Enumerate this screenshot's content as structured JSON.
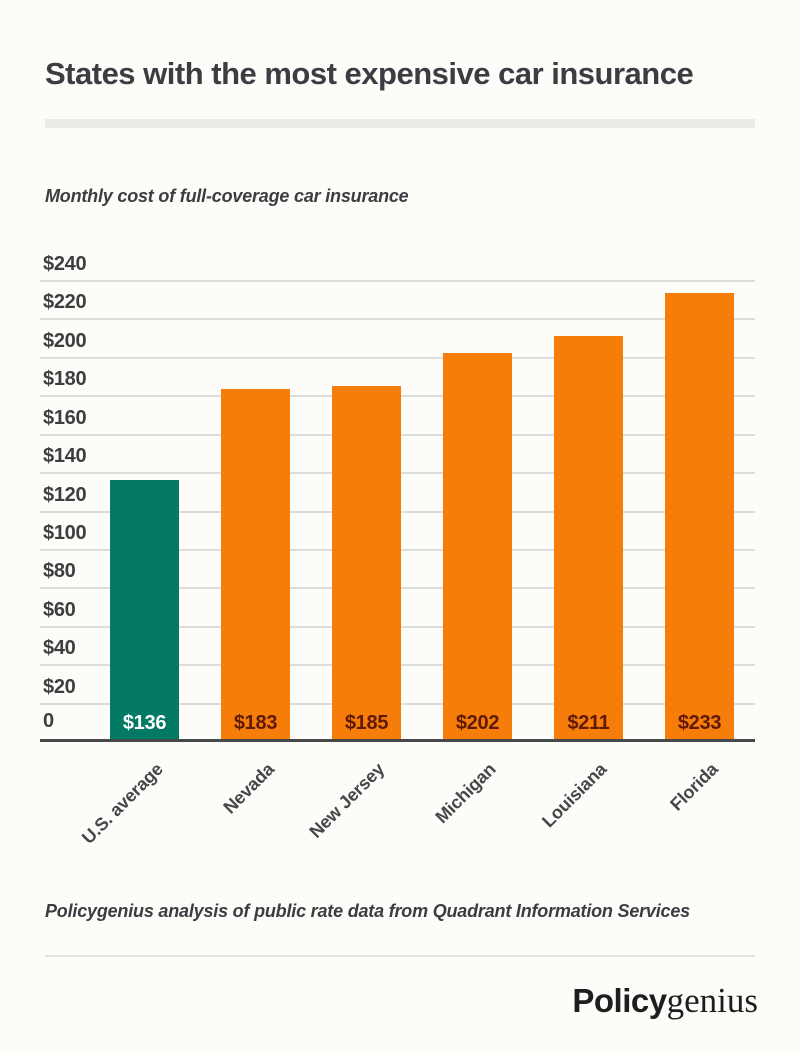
{
  "header": {
    "title": "States with the most expensive car insurance"
  },
  "subtitle": "Monthly cost of full-coverage car insurance",
  "chart_data": {
    "type": "bar",
    "title": "States with the most expensive car insurance",
    "subtitle": "Monthly cost of full-coverage car insurance",
    "categories": [
      "U.S. average",
      "Nevada",
      "New Jersey",
      "Michigan",
      "Louisiana",
      "Florida"
    ],
    "values": [
      136,
      183,
      185,
      202,
      211,
      233
    ],
    "bar_labels": [
      "$136",
      "$183",
      "$185",
      "$202",
      "$211",
      "$233"
    ],
    "bar_colors": [
      "#047A65",
      "#F77D0B",
      "#F77D0B",
      "#F77D0B",
      "#F77D0B",
      "#F77D0B"
    ],
    "value_label_colors": [
      "#FFFFFF",
      "#5E1A04",
      "#5E1A04",
      "#5E1A04",
      "#5E1A04",
      "#5E1A04"
    ],
    "ylabel": "",
    "xlabel": "",
    "ylim": [
      0,
      240
    ],
    "ytick_step": 20,
    "ytick_prefix": "$",
    "zero_tick_label": "0",
    "grid": true,
    "legend": "none"
  },
  "footer": {
    "source": "Policygenius analysis of public rate data from Quadrant Information Services",
    "logo_bold": "Policy",
    "logo_serif": "genius"
  },
  "colors": {
    "background": "#FDFCF8",
    "accent_teal": "#047A65",
    "accent_orange": "#F77D0B",
    "value_label_dark": "#5E1A04",
    "text_dark": "#3B3D42",
    "gridline": "#DCDCDC",
    "axis": "#47484A",
    "logo": "#1E1E21"
  }
}
